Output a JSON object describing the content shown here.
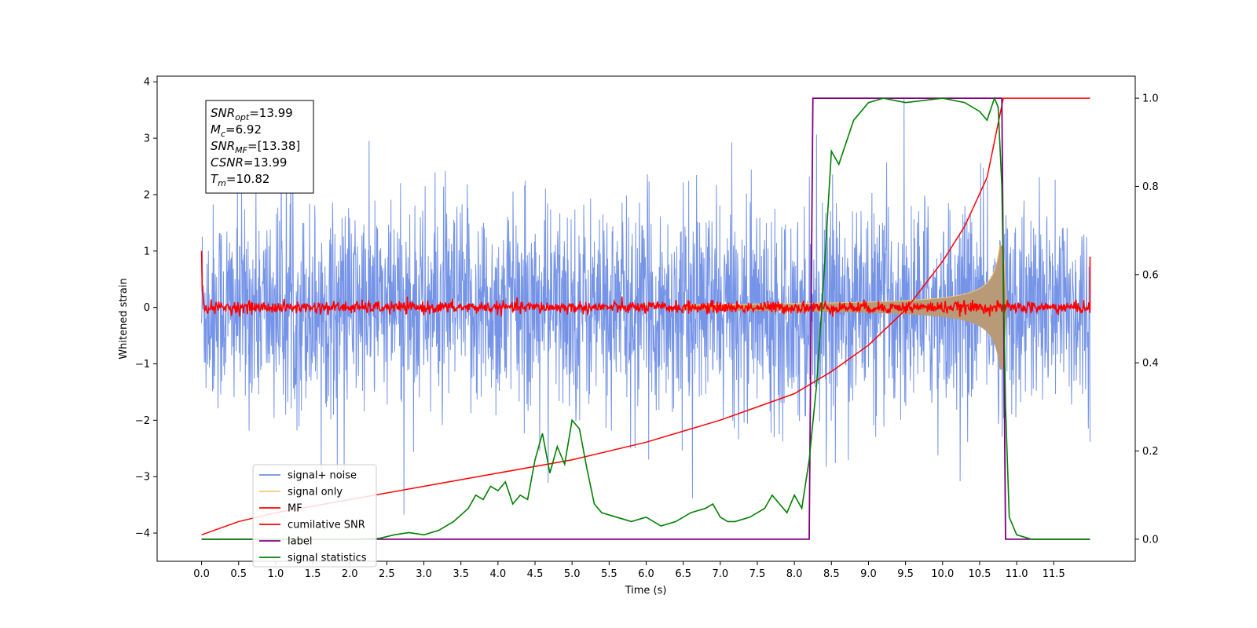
{
  "chart_data": {
    "type": "line",
    "xlabel": "Time (s)",
    "ylabel_left": "Whitened strain",
    "ylabel_right": "",
    "xlim": [
      -0.6,
      12.6
    ],
    "ylim_left": [
      -4.5,
      4.1
    ],
    "ylim_right": [
      -0.05,
      1.05
    ],
    "x_ticks": [
      "0.0",
      "0.5",
      "1.0",
      "1.5",
      "2.0",
      "2.5",
      "3.0",
      "3.5",
      "4.0",
      "4.5",
      "5.0",
      "5.5",
      "6.0",
      "6.5",
      "7.0",
      "7.5",
      "8.0",
      "8.5",
      "9.0",
      "9.5",
      "10.0",
      "10.5",
      "11.0",
      "11.5"
    ],
    "x_tick_values": [
      0,
      0.5,
      1,
      1.5,
      2,
      2.5,
      3,
      3.5,
      4,
      4.5,
      5,
      5.5,
      6,
      6.5,
      7,
      7.5,
      8,
      8.5,
      9,
      9.5,
      10,
      10.5,
      11,
      11.5
    ],
    "y_ticks_left": [
      "4",
      "3",
      "2",
      "1",
      "0",
      "−1",
      "−2",
      "−3",
      "−4"
    ],
    "y_tick_values_left": [
      4,
      3,
      2,
      1,
      0,
      -1,
      -2,
      -3,
      -4
    ],
    "y_ticks_right": [
      "1.0",
      "0.8",
      "0.6",
      "0.4",
      "0.2",
      "0.0"
    ],
    "y_tick_values_right": [
      1.0,
      0.8,
      0.6,
      0.4,
      0.2,
      0.0
    ],
    "grid": false,
    "legend_position": "lower-left",
    "colors": {
      "noise": "#6f8ee6",
      "signal": "#f5c874",
      "signal_overlap": "#b89a78",
      "mf": "#ff0000",
      "csnr": "#ff0000",
      "label": "#800080",
      "stats": "#008000"
    },
    "series": [
      {
        "name": "signal+ noise",
        "axis": "left",
        "color": "#6f8ee6",
        "description_values": "Gaussian noise, x 0 to 11.99, amplitude roughly ±3.7"
      },
      {
        "name": "signal only",
        "axis": "left",
        "color": "#f5c874",
        "chirp": {
          "x_start": 6.5,
          "merger": 10.82,
          "peak_amplitude": 1.1
        }
      },
      {
        "name": "MF",
        "axis": "left",
        "color": "#ff0000",
        "x_range": [
          0,
          11.99
        ],
        "baseline": 0.0,
        "spread": 0.12,
        "start_value": 1.0,
        "end_value": 0.9
      },
      {
        "name": "cumilative SNR",
        "axis": "right",
        "color": "#ff0000",
        "x": [
          0.0,
          0.5,
          1.0,
          2.0,
          3.0,
          4.0,
          5.0,
          6.0,
          7.0,
          7.5,
          8.0,
          8.5,
          9.0,
          9.5,
          10.0,
          10.3,
          10.6,
          10.82,
          11.99
        ],
        "y": [
          0.01,
          0.04,
          0.06,
          0.09,
          0.12,
          0.15,
          0.18,
          0.22,
          0.27,
          0.3,
          0.33,
          0.38,
          0.44,
          0.52,
          0.63,
          0.71,
          0.82,
          1.0,
          1.0
        ]
      },
      {
        "name": "label",
        "axis": "right",
        "color": "#800080",
        "x": [
          0.0,
          8.2,
          8.25,
          10.8,
          10.85,
          11.99
        ],
        "y": [
          0.0,
          0.0,
          1.0,
          1.0,
          0.0,
          0.0
        ]
      },
      {
        "name": "signal statistics",
        "axis": "right",
        "color": "#008000",
        "x": [
          0.0,
          2.0,
          2.4,
          2.6,
          2.8,
          3.0,
          3.2,
          3.4,
          3.6,
          3.7,
          3.8,
          3.9,
          4.0,
          4.1,
          4.2,
          4.3,
          4.4,
          4.5,
          4.6,
          4.7,
          4.8,
          4.9,
          5.0,
          5.1,
          5.2,
          5.3,
          5.4,
          5.6,
          5.8,
          6.0,
          6.2,
          6.4,
          6.6,
          6.8,
          6.9,
          7.0,
          7.1,
          7.2,
          7.4,
          7.6,
          7.7,
          7.8,
          7.9,
          8.0,
          8.1,
          8.2,
          8.3,
          8.4,
          8.5,
          8.6,
          8.7,
          8.8,
          8.9,
          9.0,
          9.2,
          9.5,
          10.0,
          10.3,
          10.5,
          10.6,
          10.7,
          10.75,
          10.8,
          10.85,
          10.9,
          11.0,
          11.2,
          11.99
        ],
        "y": [
          0.0,
          0.0,
          0.002,
          0.01,
          0.015,
          0.01,
          0.02,
          0.04,
          0.07,
          0.1,
          0.09,
          0.12,
          0.11,
          0.13,
          0.08,
          0.1,
          0.09,
          0.18,
          0.24,
          0.15,
          0.21,
          0.17,
          0.27,
          0.25,
          0.16,
          0.08,
          0.06,
          0.05,
          0.04,
          0.05,
          0.03,
          0.04,
          0.06,
          0.07,
          0.08,
          0.05,
          0.04,
          0.04,
          0.05,
          0.07,
          0.1,
          0.08,
          0.06,
          0.1,
          0.07,
          0.18,
          0.35,
          0.6,
          0.88,
          0.85,
          0.9,
          0.95,
          0.97,
          0.99,
          1.0,
          0.99,
          1.0,
          0.99,
          0.97,
          0.95,
          1.0,
          0.98,
          0.8,
          0.3,
          0.05,
          0.01,
          0.0,
          0.0
        ]
      }
    ],
    "annotations": {
      "snr_opt": {
        "label": "SNR",
        "sub": "opt",
        "value": "=13.99"
      },
      "mc": {
        "label": "M",
        "sub": "c",
        "value": "=6.92"
      },
      "snr_mf": {
        "label": "SNR",
        "sub": "MF",
        "value": "=[13.38]"
      },
      "csnr": {
        "label": "CSNR",
        "sub": "",
        "value": "=13.99"
      },
      "tm": {
        "label": "T",
        "sub": "m",
        "value": "=10.82"
      }
    }
  }
}
